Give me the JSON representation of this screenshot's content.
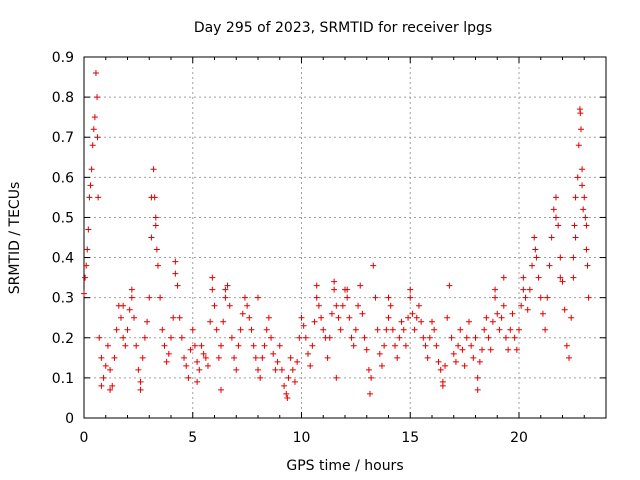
{
  "chart_data": {
    "type": "scatter",
    "title": "Day 295 of 2023, SRMTID for receiver lpgs",
    "xlabel": "GPS time / hours",
    "ylabel": "SRMTID / TECUs",
    "xlim": [
      0,
      24
    ],
    "ylim": [
      0,
      0.9
    ],
    "xticks": [
      0,
      5,
      10,
      15,
      20
    ],
    "xtick_labels": [
      "0",
      "5",
      "10",
      "15",
      "20"
    ],
    "yticks": [
      0,
      0.1,
      0.2,
      0.3,
      0.4,
      0.5,
      0.6,
      0.7,
      0.8,
      0.9
    ],
    "ytick_labels": [
      "0",
      "0.1",
      "0.2",
      "0.3",
      "0.4",
      "0.5",
      "0.6",
      "0.7",
      "0.8",
      "0.9"
    ],
    "grid": true,
    "marker": "+",
    "color": "#e00000",
    "series": [
      {
        "name": "SRMTID",
        "points": [
          [
            0.0,
            0.31
          ],
          [
            0.05,
            0.35
          ],
          [
            0.1,
            0.38
          ],
          [
            0.15,
            0.42
          ],
          [
            0.2,
            0.47
          ],
          [
            0.25,
            0.55
          ],
          [
            0.3,
            0.58
          ],
          [
            0.35,
            0.62
          ],
          [
            0.4,
            0.68
          ],
          [
            0.45,
            0.72
          ],
          [
            0.5,
            0.75
          ],
          [
            0.55,
            0.86
          ],
          [
            0.6,
            0.8
          ],
          [
            0.62,
            0.7
          ],
          [
            0.65,
            0.55
          ],
          [
            0.7,
            0.2
          ],
          [
            0.8,
            0.15
          ],
          [
            0.9,
            0.1
          ],
          [
            1.0,
            0.13
          ],
          [
            1.1,
            0.18
          ],
          [
            1.2,
            0.12
          ],
          [
            1.3,
            0.08
          ],
          [
            1.4,
            0.15
          ],
          [
            1.5,
            0.22
          ],
          [
            1.6,
            0.28
          ],
          [
            1.7,
            0.25
          ],
          [
            1.8,
            0.2
          ],
          [
            1.9,
            0.18
          ],
          [
            2.0,
            0.22
          ],
          [
            2.1,
            0.27
          ],
          [
            2.2,
            0.32
          ],
          [
            2.3,
            0.25
          ],
          [
            2.4,
            0.18
          ],
          [
            2.5,
            0.12
          ],
          [
            2.6,
            0.09
          ],
          [
            2.7,
            0.15
          ],
          [
            2.8,
            0.2
          ],
          [
            2.9,
            0.24
          ],
          [
            3.0,
            0.3
          ],
          [
            3.1,
            0.45
          ],
          [
            3.2,
            0.62
          ],
          [
            3.25,
            0.55
          ],
          [
            3.3,
            0.48
          ],
          [
            3.35,
            0.42
          ],
          [
            3.4,
            0.38
          ],
          [
            3.5,
            0.3
          ],
          [
            3.6,
            0.22
          ],
          [
            3.7,
            0.18
          ],
          [
            3.8,
            0.14
          ],
          [
            3.9,
            0.16
          ],
          [
            4.0,
            0.2
          ],
          [
            4.1,
            0.25
          ],
          [
            4.2,
            0.39
          ],
          [
            4.3,
            0.33
          ],
          [
            4.4,
            0.25
          ],
          [
            4.5,
            0.2
          ],
          [
            4.6,
            0.15
          ],
          [
            4.7,
            0.13
          ],
          [
            4.8,
            0.1
          ],
          [
            4.9,
            0.17
          ],
          [
            5.0,
            0.22
          ],
          [
            5.1,
            0.18
          ],
          [
            5.2,
            0.14
          ],
          [
            5.3,
            0.12
          ],
          [
            5.4,
            0.18
          ],
          [
            5.5,
            0.16
          ],
          [
            5.6,
            0.15
          ],
          [
            5.7,
            0.13
          ],
          [
            5.8,
            0.24
          ],
          [
            5.9,
            0.35
          ],
          [
            6.0,
            0.28
          ],
          [
            6.1,
            0.22
          ],
          [
            6.2,
            0.15
          ],
          [
            6.3,
            0.18
          ],
          [
            6.4,
            0.24
          ],
          [
            6.5,
            0.3
          ],
          [
            6.6,
            0.33
          ],
          [
            6.7,
            0.28
          ],
          [
            6.8,
            0.2
          ],
          [
            6.9,
            0.15
          ],
          [
            7.0,
            0.12
          ],
          [
            7.1,
            0.18
          ],
          [
            7.2,
            0.22
          ],
          [
            7.3,
            0.26
          ],
          [
            7.4,
            0.3
          ],
          [
            7.5,
            0.28
          ],
          [
            7.6,
            0.25
          ],
          [
            7.7,
            0.22
          ],
          [
            7.8,
            0.18
          ],
          [
            7.9,
            0.15
          ],
          [
            8.0,
            0.12
          ],
          [
            8.1,
            0.1
          ],
          [
            8.2,
            0.15
          ],
          [
            8.3,
            0.18
          ],
          [
            8.4,
            0.22
          ],
          [
            8.5,
            0.25
          ],
          [
            8.6,
            0.2
          ],
          [
            8.7,
            0.16
          ],
          [
            8.8,
            0.12
          ],
          [
            8.9,
            0.14
          ],
          [
            9.0,
            0.18
          ],
          [
            9.1,
            0.12
          ],
          [
            9.2,
            0.08
          ],
          [
            9.3,
            0.06
          ],
          [
            9.4,
            0.1
          ],
          [
            9.5,
            0.15
          ],
          [
            9.6,
            0.12
          ],
          [
            9.7,
            0.09
          ],
          [
            9.8,
            0.14
          ],
          [
            9.9,
            0.2
          ],
          [
            10.0,
            0.25
          ],
          [
            10.1,
            0.23
          ],
          [
            10.2,
            0.2
          ],
          [
            10.3,
            0.16
          ],
          [
            10.4,
            0.13
          ],
          [
            10.5,
            0.18
          ],
          [
            10.6,
            0.24
          ],
          [
            10.7,
            0.3
          ],
          [
            10.8,
            0.28
          ],
          [
            10.9,
            0.25
          ],
          [
            11.0,
            0.22
          ],
          [
            11.1,
            0.2
          ],
          [
            11.2,
            0.15
          ],
          [
            11.3,
            0.2
          ],
          [
            11.4,
            0.26
          ],
          [
            11.5,
            0.32
          ],
          [
            11.6,
            0.28
          ],
          [
            11.7,
            0.25
          ],
          [
            11.8,
            0.22
          ],
          [
            11.9,
            0.28
          ],
          [
            12.0,
            0.32
          ],
          [
            12.1,
            0.3
          ],
          [
            12.2,
            0.25
          ],
          [
            12.3,
            0.2
          ],
          [
            12.4,
            0.18
          ],
          [
            12.5,
            0.22
          ],
          [
            12.6,
            0.28
          ],
          [
            12.7,
            0.33
          ],
          [
            12.8,
            0.26
          ],
          [
            12.9,
            0.2
          ],
          [
            13.0,
            0.17
          ],
          [
            13.1,
            0.12
          ],
          [
            13.2,
            0.1
          ],
          [
            13.3,
            0.38
          ],
          [
            13.4,
            0.3
          ],
          [
            13.5,
            0.22
          ],
          [
            13.6,
            0.16
          ],
          [
            13.7,
            0.13
          ],
          [
            13.8,
            0.18
          ],
          [
            13.9,
            0.22
          ],
          [
            14.0,
            0.25
          ],
          [
            14.1,
            0.28
          ],
          [
            14.2,
            0.22
          ],
          [
            14.3,
            0.18
          ],
          [
            14.4,
            0.15
          ],
          [
            14.5,
            0.2
          ],
          [
            14.6,
            0.24
          ],
          [
            14.7,
            0.22
          ],
          [
            14.8,
            0.18
          ],
          [
            14.9,
            0.25
          ],
          [
            15.0,
            0.3
          ],
          [
            15.1,
            0.26
          ],
          [
            15.2,
            0.22
          ],
          [
            15.3,
            0.25
          ],
          [
            15.4,
            0.28
          ],
          [
            15.5,
            0.24
          ],
          [
            15.6,
            0.2
          ],
          [
            15.7,
            0.18
          ],
          [
            15.8,
            0.15
          ],
          [
            15.9,
            0.2
          ],
          [
            16.0,
            0.24
          ],
          [
            16.1,
            0.22
          ],
          [
            16.2,
            0.18
          ],
          [
            16.3,
            0.14
          ],
          [
            16.4,
            0.12
          ],
          [
            16.5,
            0.09
          ],
          [
            16.6,
            0.13
          ],
          [
            16.7,
            0.25
          ],
          [
            16.8,
            0.33
          ],
          [
            16.9,
            0.2
          ],
          [
            17.0,
            0.16
          ],
          [
            17.1,
            0.14
          ],
          [
            17.2,
            0.18
          ],
          [
            17.3,
            0.22
          ],
          [
            17.4,
            0.17
          ],
          [
            17.5,
            0.13
          ],
          [
            17.6,
            0.2
          ],
          [
            17.7,
            0.24
          ],
          [
            17.8,
            0.18
          ],
          [
            17.9,
            0.15
          ],
          [
            18.0,
            0.2
          ],
          [
            18.1,
            0.1
          ],
          [
            18.2,
            0.14
          ],
          [
            18.3,
            0.17
          ],
          [
            18.4,
            0.22
          ],
          [
            18.5,
            0.25
          ],
          [
            18.6,
            0.2
          ],
          [
            18.7,
            0.17
          ],
          [
            18.8,
            0.24
          ],
          [
            18.9,
            0.3
          ],
          [
            19.0,
            0.26
          ],
          [
            19.1,
            0.22
          ],
          [
            19.2,
            0.25
          ],
          [
            19.3,
            0.28
          ],
          [
            19.4,
            0.2
          ],
          [
            19.5,
            0.17
          ],
          [
            19.6,
            0.22
          ],
          [
            19.7,
            0.26
          ],
          [
            19.8,
            0.2
          ],
          [
            19.9,
            0.17
          ],
          [
            20.0,
            0.22
          ],
          [
            20.1,
            0.28
          ],
          [
            20.2,
            0.32
          ],
          [
            20.3,
            0.3
          ],
          [
            20.4,
            0.27
          ],
          [
            20.5,
            0.32
          ],
          [
            20.6,
            0.38
          ],
          [
            20.7,
            0.45
          ],
          [
            20.8,
            0.4
          ],
          [
            20.9,
            0.35
          ],
          [
            21.0,
            0.3
          ],
          [
            21.1,
            0.26
          ],
          [
            21.2,
            0.22
          ],
          [
            21.3,
            0.3
          ],
          [
            21.4,
            0.38
          ],
          [
            21.5,
            0.45
          ],
          [
            21.6,
            0.52
          ],
          [
            21.7,
            0.55
          ],
          [
            21.8,
            0.48
          ],
          [
            21.9,
            0.4
          ],
          [
            22.0,
            0.34
          ],
          [
            22.1,
            0.27
          ],
          [
            22.2,
            0.18
          ],
          [
            22.3,
            0.15
          ],
          [
            22.4,
            0.25
          ],
          [
            22.5,
            0.4
          ],
          [
            22.55,
            0.48
          ],
          [
            22.6,
            0.55
          ],
          [
            22.7,
            0.6
          ],
          [
            22.75,
            0.68
          ],
          [
            22.8,
            0.77
          ],
          [
            22.82,
            0.76
          ],
          [
            22.85,
            0.72
          ],
          [
            22.9,
            0.62
          ],
          [
            23.0,
            0.55
          ],
          [
            23.05,
            0.5
          ],
          [
            23.1,
            0.42
          ],
          [
            23.15,
            0.38
          ],
          [
            23.2,
            0.3
          ],
          [
            0.8,
            0.08
          ],
          [
            1.2,
            0.07
          ],
          [
            2.6,
            0.07
          ],
          [
            6.3,
            0.07
          ],
          [
            9.35,
            0.05
          ],
          [
            13.15,
            0.06
          ],
          [
            16.5,
            0.08
          ],
          [
            18.1,
            0.07
          ],
          [
            5.2,
            0.09
          ],
          [
            11.6,
            0.1
          ],
          [
            3.3,
            0.5
          ],
          [
            3.1,
            0.55
          ],
          [
            21.7,
            0.5
          ],
          [
            22.6,
            0.45
          ],
          [
            22.9,
            0.58
          ],
          [
            20.75,
            0.42
          ],
          [
            21.9,
            0.35
          ],
          [
            22.95,
            0.52
          ],
          [
            23.1,
            0.48
          ],
          [
            22.5,
            0.35
          ],
          [
            1.8,
            0.28
          ],
          [
            2.2,
            0.3
          ],
          [
            4.2,
            0.36
          ],
          [
            5.9,
            0.32
          ],
          [
            6.5,
            0.32
          ],
          [
            8.0,
            0.3
          ],
          [
            10.7,
            0.33
          ],
          [
            11.5,
            0.34
          ],
          [
            12.1,
            0.32
          ],
          [
            14.0,
            0.3
          ],
          [
            15.0,
            0.32
          ],
          [
            18.9,
            0.32
          ],
          [
            19.3,
            0.35
          ],
          [
            20.2,
            0.35
          ]
        ]
      }
    ]
  }
}
